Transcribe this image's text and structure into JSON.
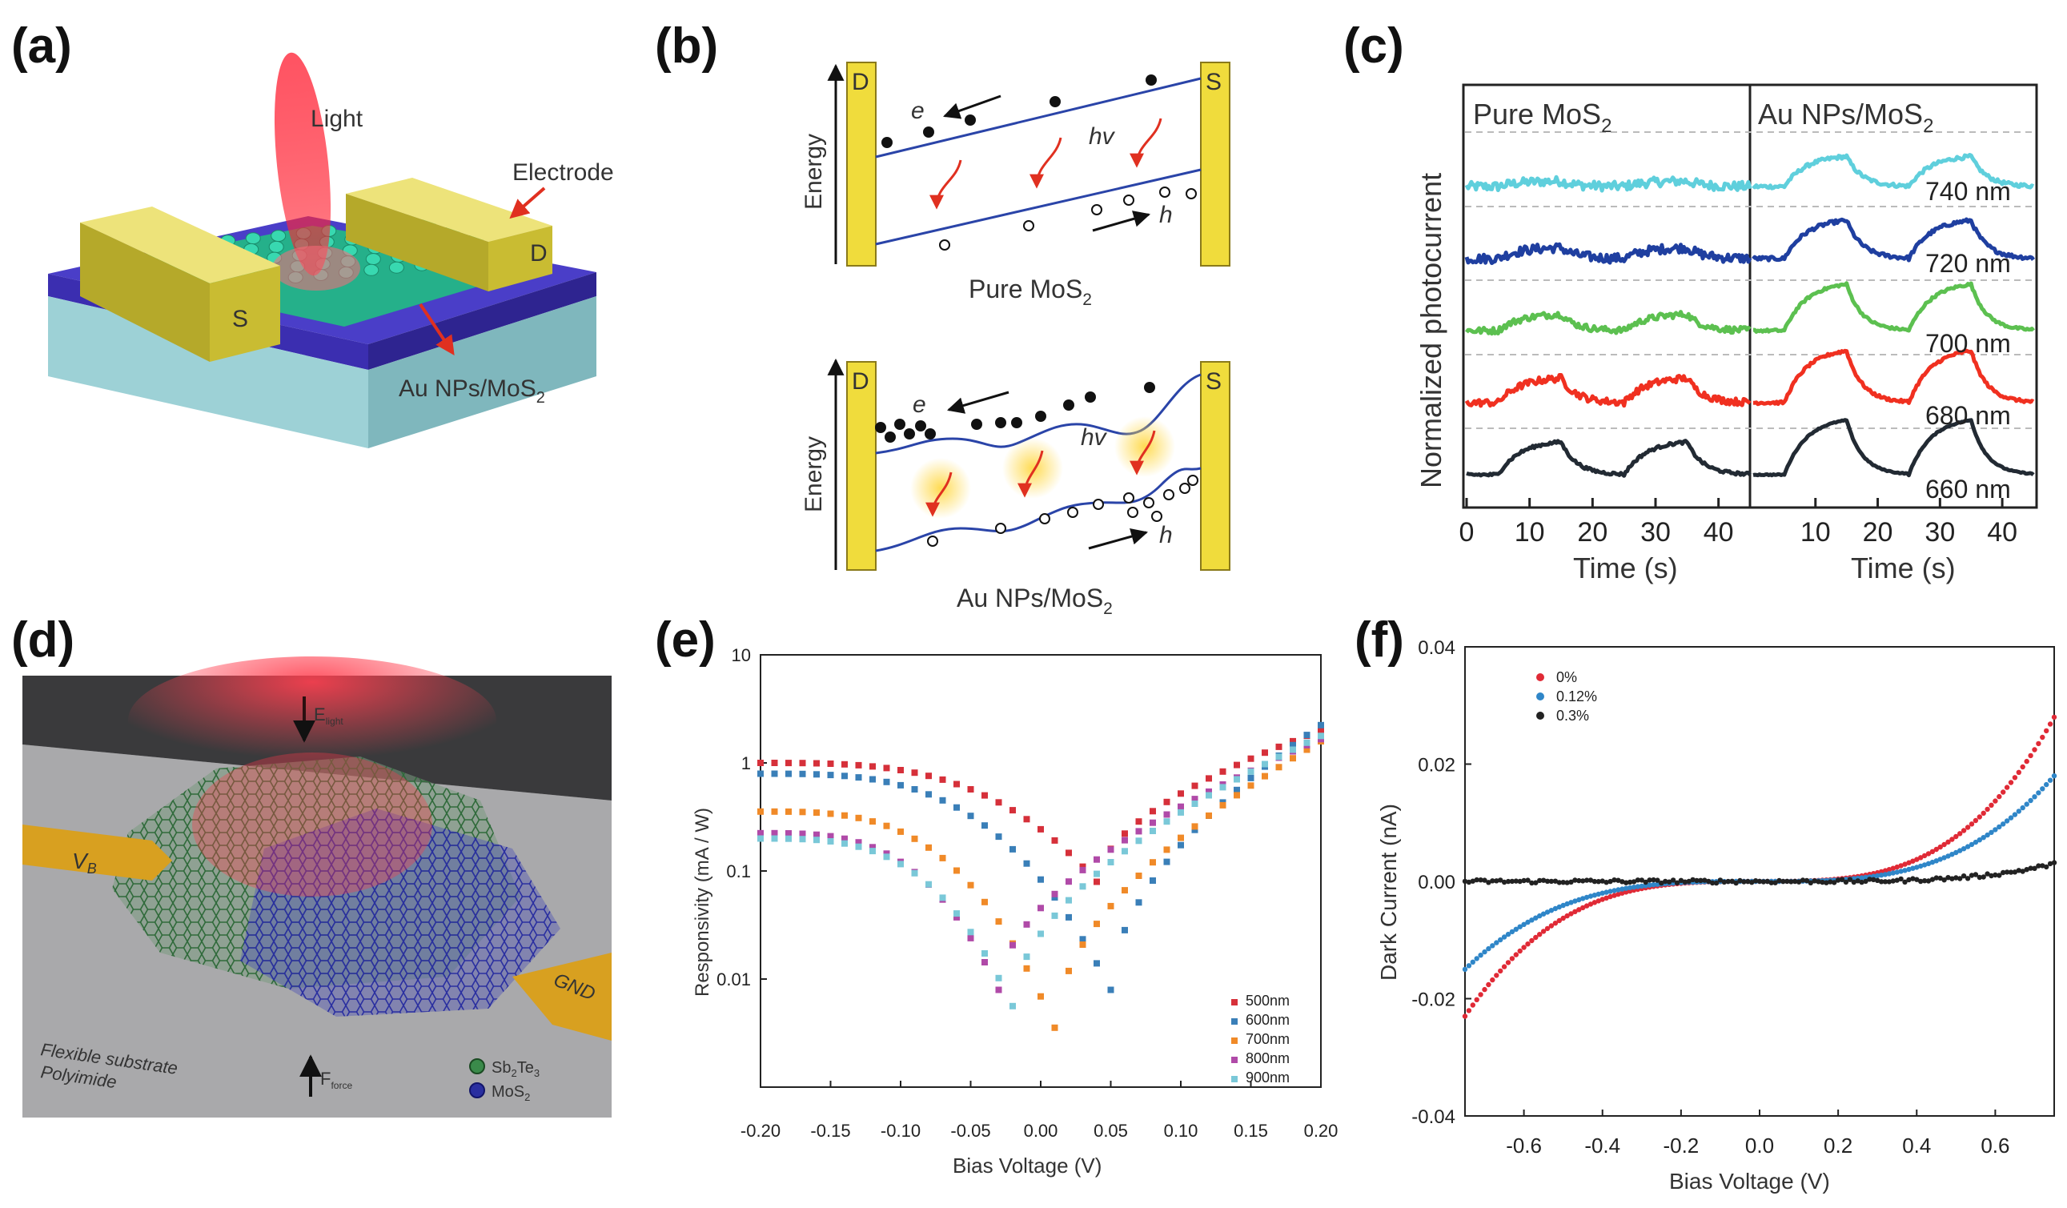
{
  "panels": {
    "a": {
      "label": "(a)",
      "light": "Light",
      "electrode": "Electrode",
      "source": "S",
      "drain": "D",
      "material": "Au NPs/MoS",
      "material_sub": "2"
    },
    "b": {
      "label": "(b)",
      "top": {
        "drain": "D",
        "source": "S",
        "axis": "Energy",
        "electron": "e",
        "hole": "h",
        "photon": "hv",
        "caption": "Pure MoS",
        "caption_sub": "2"
      },
      "bottom": {
        "drain": "D",
        "source": "S",
        "axis": "Energy",
        "electron": "e",
        "hole": "h",
        "photon": "hv",
        "caption": "Au NPs/MoS",
        "caption_sub": "2"
      }
    },
    "c": {
      "label": "(c)"
    },
    "d": {
      "label": "(d)",
      "vb": "V",
      "vb_sub": "B",
      "gnd": "GND",
      "e_light": "E",
      "e_light_sub": "light",
      "f_force": "F",
      "f_force_sub": "force",
      "substrate_1": "Flexible substrate",
      "substrate_2": "Polyimide",
      "legend_1": "Sb",
      "legend_1_sub1": "2",
      "legend_1_mid": "Te",
      "legend_1_sub2": "3",
      "legend_2": "MoS",
      "legend_2_sub": "2"
    },
    "e": {
      "label": "(e)"
    },
    "f": {
      "label": "(f)"
    }
  },
  "colors": {
    "gold": "#e8d84a",
    "band": "#2a44a8",
    "red_arrow": "#e03020",
    "cyan": "#5fcfdc",
    "blue": "#1f3fa0",
    "green": "#5cc050",
    "red": "#f03020",
    "black": "#222a33",
    "r500": "#d6303a",
    "r600": "#3a7fb8",
    "r700": "#f08a28",
    "r800": "#b04aa8",
    "r900": "#7ac8d8",
    "f0": "#e02a36",
    "f012": "#2f86c8",
    "f03": "#222222"
  },
  "chart_data": [
    {
      "id": "c",
      "type": "line",
      "ylabel": "Normalized photocurrent",
      "subpanels": [
        {
          "title": "Pure MoS",
          "title_sub": "2",
          "xlabel": "Time (s)",
          "xlim": [
            0,
            45
          ],
          "xticks": [
            0,
            10,
            20,
            30,
            40
          ]
        },
        {
          "title": "Au NPs/MoS",
          "title_sub": "2",
          "xlabel": "Time (s)",
          "xlim": [
            0,
            45
          ],
          "xticks": [
            10,
            20,
            30,
            40
          ]
        }
      ],
      "series": [
        {
          "name": "740 nm",
          "color": "#5fcfdc",
          "label_color": "#333333"
        },
        {
          "name": "720 nm",
          "color": "#1f3fa0",
          "label_color": "#333333"
        },
        {
          "name": "700 nm",
          "color": "#5cc050",
          "label_color": "#333333"
        },
        {
          "name": "680 nm",
          "color": "#f03020",
          "label_color": "#333333"
        },
        {
          "name": "660 nm",
          "color": "#222a33",
          "label_color": "#f03020"
        }
      ],
      "light_on_intervals_s": [
        [
          5,
          15
        ],
        [
          25,
          35
        ]
      ],
      "pure_amplitudes": [
        0.1,
        0.2,
        0.3,
        0.45,
        0.6
      ],
      "au_amplitudes": [
        0.55,
        0.7,
        0.85,
        0.95,
        1.0
      ],
      "noise": [
        0.16,
        0.16,
        0.11,
        0.12,
        0.05
      ]
    },
    {
      "id": "e",
      "type": "scatter",
      "title": "",
      "xlabel": "Bias Voltage (V)",
      "ylabel": "Responsivity (mA / W)",
      "xlim": [
        -0.2,
        0.2
      ],
      "ylim": [
        0.001,
        10
      ],
      "yscale": "log",
      "xticks": [
        "-0.20",
        "-0.15",
        "-0.10",
        "-0.05",
        "0.00",
        "0.05",
        "0.10",
        "0.15",
        "0.20"
      ],
      "yticks": [
        "0.01",
        "0.1",
        "1",
        "10"
      ],
      "legend_position": "bottom-right",
      "series": [
        {
          "name": "500nm",
          "color": "#d6303a",
          "log_at_neg_bias": 0.0,
          "v_min": 0.04,
          "log_dip": -1.1,
          "log_at_pos_bias": 0.3
        },
        {
          "name": "600nm",
          "color": "#3a7fb8",
          "log_at_neg_bias": -0.1,
          "v_min": 0.05,
          "log_dip": -2.1,
          "log_at_pos_bias": 0.35
        },
        {
          "name": "700nm",
          "color": "#f08a28",
          "log_at_neg_bias": -0.45,
          "v_min": 0.01,
          "log_dip": -2.45,
          "log_at_pos_bias": 0.2
        },
        {
          "name": "800nm",
          "color": "#b04aa8",
          "log_at_neg_bias": -0.65,
          "v_min": -0.03,
          "log_dip": -2.1,
          "log_at_pos_bias": 0.22
        },
        {
          "name": "900nm",
          "color": "#7ac8d8",
          "log_at_neg_bias": -0.7,
          "v_min": -0.02,
          "log_dip": -2.25,
          "log_at_pos_bias": 0.25
        }
      ]
    },
    {
      "id": "f",
      "type": "line",
      "title": "",
      "xlabel": "Bias Voltage (V)",
      "ylabel": "Dark Current (nA)",
      "xlim": [
        -0.75,
        0.75
      ],
      "ylim": [
        -0.04,
        0.04
      ],
      "xticks": [
        "-0.6",
        "-0.4",
        "-0.2",
        "0.0",
        "0.2",
        "0.4",
        "0.6"
      ],
      "yticks": [
        "-0.04",
        "-0.02",
        "0.00",
        "0.02",
        "0.04"
      ],
      "legend_position": "top-left",
      "series": [
        {
          "name": "0%",
          "color": "#e02a36",
          "value_at_-0.75": -0.023,
          "value_at_0.75": 0.028
        },
        {
          "name": "0.12%",
          "color": "#2f86c8",
          "value_at_-0.75": -0.015,
          "value_at_0.75": 0.018
        },
        {
          "name": "0.3%",
          "color": "#222222",
          "value_at_-0.75": 0.0,
          "value_at_0.75": 0.003
        }
      ]
    }
  ]
}
